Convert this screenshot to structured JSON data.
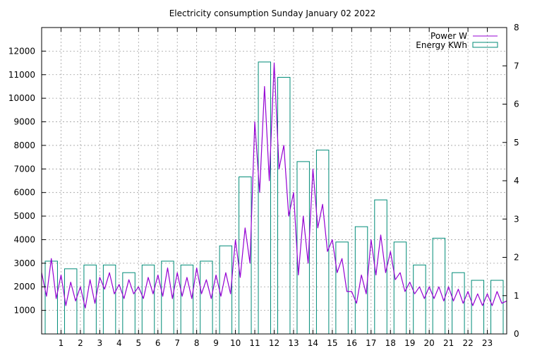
{
  "chart_data": {
    "type": "line",
    "title": "Electricity consumption Sunday January 02 2022",
    "x": {
      "range": [
        0,
        24
      ],
      "ticks": [
        1,
        2,
        3,
        4,
        5,
        6,
        7,
        8,
        9,
        10,
        11,
        12,
        13,
        14,
        15,
        16,
        17,
        18,
        19,
        20,
        21,
        22,
        23
      ]
    },
    "y_left": {
      "range": [
        0,
        13000
      ],
      "ticks": [
        1000,
        2000,
        3000,
        4000,
        5000,
        6000,
        7000,
        8000,
        9000,
        10000,
        11000,
        12000
      ]
    },
    "y_right": {
      "range": [
        0,
        8
      ],
      "ticks": [
        0,
        1,
        2,
        3,
        4,
        5,
        6,
        7,
        8
      ]
    },
    "grid": true,
    "legend_position": "top-right",
    "series": [
      {
        "name": "Power W",
        "axis": "left",
        "style": "line",
        "color": "#9400d3",
        "points": [
          [
            0.0,
            2600
          ],
          [
            0.25,
            1600
          ],
          [
            0.5,
            3200
          ],
          [
            0.75,
            1500
          ],
          [
            1.0,
            2500
          ],
          [
            1.25,
            1200
          ],
          [
            1.5,
            2200
          ],
          [
            1.75,
            1400
          ],
          [
            2.0,
            2000
          ],
          [
            2.25,
            1100
          ],
          [
            2.5,
            2300
          ],
          [
            2.75,
            1300
          ],
          [
            3.0,
            2400
          ],
          [
            3.25,
            1900
          ],
          [
            3.5,
            2600
          ],
          [
            3.75,
            1700
          ],
          [
            4.0,
            2100
          ],
          [
            4.25,
            1500
          ],
          [
            4.5,
            2300
          ],
          [
            4.75,
            1700
          ],
          [
            5.0,
            2000
          ],
          [
            5.25,
            1500
          ],
          [
            5.5,
            2400
          ],
          [
            5.75,
            1700
          ],
          [
            6.0,
            2500
          ],
          [
            6.25,
            1600
          ],
          [
            6.5,
            2800
          ],
          [
            6.75,
            1500
          ],
          [
            7.0,
            2600
          ],
          [
            7.25,
            1600
          ],
          [
            7.5,
            2400
          ],
          [
            7.75,
            1500
          ],
          [
            8.0,
            2800
          ],
          [
            8.25,
            1700
          ],
          [
            8.5,
            2300
          ],
          [
            8.75,
            1500
          ],
          [
            9.0,
            2500
          ],
          [
            9.25,
            1600
          ],
          [
            9.5,
            2600
          ],
          [
            9.75,
            1700
          ],
          [
            10.0,
            4000
          ],
          [
            10.25,
            2400
          ],
          [
            10.5,
            4500
          ],
          [
            10.75,
            3000
          ],
          [
            11.0,
            9000
          ],
          [
            11.25,
            6000
          ],
          [
            11.5,
            10500
          ],
          [
            11.75,
            6500
          ],
          [
            12.0,
            11500
          ],
          [
            12.25,
            7000
          ],
          [
            12.5,
            8000
          ],
          [
            12.75,
            5000
          ],
          [
            13.0,
            6000
          ],
          [
            13.25,
            2500
          ],
          [
            13.5,
            5000
          ],
          [
            13.75,
            3000
          ],
          [
            14.0,
            7000
          ],
          [
            14.25,
            4500
          ],
          [
            14.5,
            5500
          ],
          [
            14.75,
            3500
          ],
          [
            15.0,
            4000
          ],
          [
            15.25,
            2600
          ],
          [
            15.5,
            3200
          ],
          [
            15.75,
            1800
          ],
          [
            16.0,
            1800
          ],
          [
            16.25,
            1300
          ],
          [
            16.5,
            2500
          ],
          [
            16.75,
            1700
          ],
          [
            17.0,
            4000
          ],
          [
            17.25,
            2500
          ],
          [
            17.5,
            4200
          ],
          [
            17.75,
            2600
          ],
          [
            18.0,
            3500
          ],
          [
            18.25,
            2300
          ],
          [
            18.5,
            2600
          ],
          [
            18.75,
            1800
          ],
          [
            19.0,
            2200
          ],
          [
            19.25,
            1700
          ],
          [
            19.5,
            2000
          ],
          [
            19.75,
            1500
          ],
          [
            20.0,
            2000
          ],
          [
            20.25,
            1500
          ],
          [
            20.5,
            2000
          ],
          [
            20.75,
            1400
          ],
          [
            21.0,
            2000
          ],
          [
            21.25,
            1400
          ],
          [
            21.5,
            1900
          ],
          [
            21.75,
            1300
          ],
          [
            22.0,
            1800
          ],
          [
            22.25,
            1200
          ],
          [
            22.5,
            1700
          ],
          [
            22.75,
            1200
          ],
          [
            23.0,
            1700
          ],
          [
            23.25,
            1200
          ],
          [
            23.5,
            1800
          ],
          [
            23.75,
            1300
          ],
          [
            24.0,
            1400
          ]
        ]
      },
      {
        "name": "Energy KWh",
        "axis": "right",
        "style": "steps",
        "color": "#008b77",
        "values": [
          1.9,
          1.7,
          1.8,
          1.8,
          1.6,
          1.8,
          1.9,
          1.8,
          1.9,
          2.3,
          4.1,
          7.1,
          6.7,
          4.5,
          4.8,
          2.4,
          2.8,
          3.5,
          2.4,
          1.8,
          2.5,
          1.6,
          1.4,
          1.4
        ]
      }
    ]
  }
}
